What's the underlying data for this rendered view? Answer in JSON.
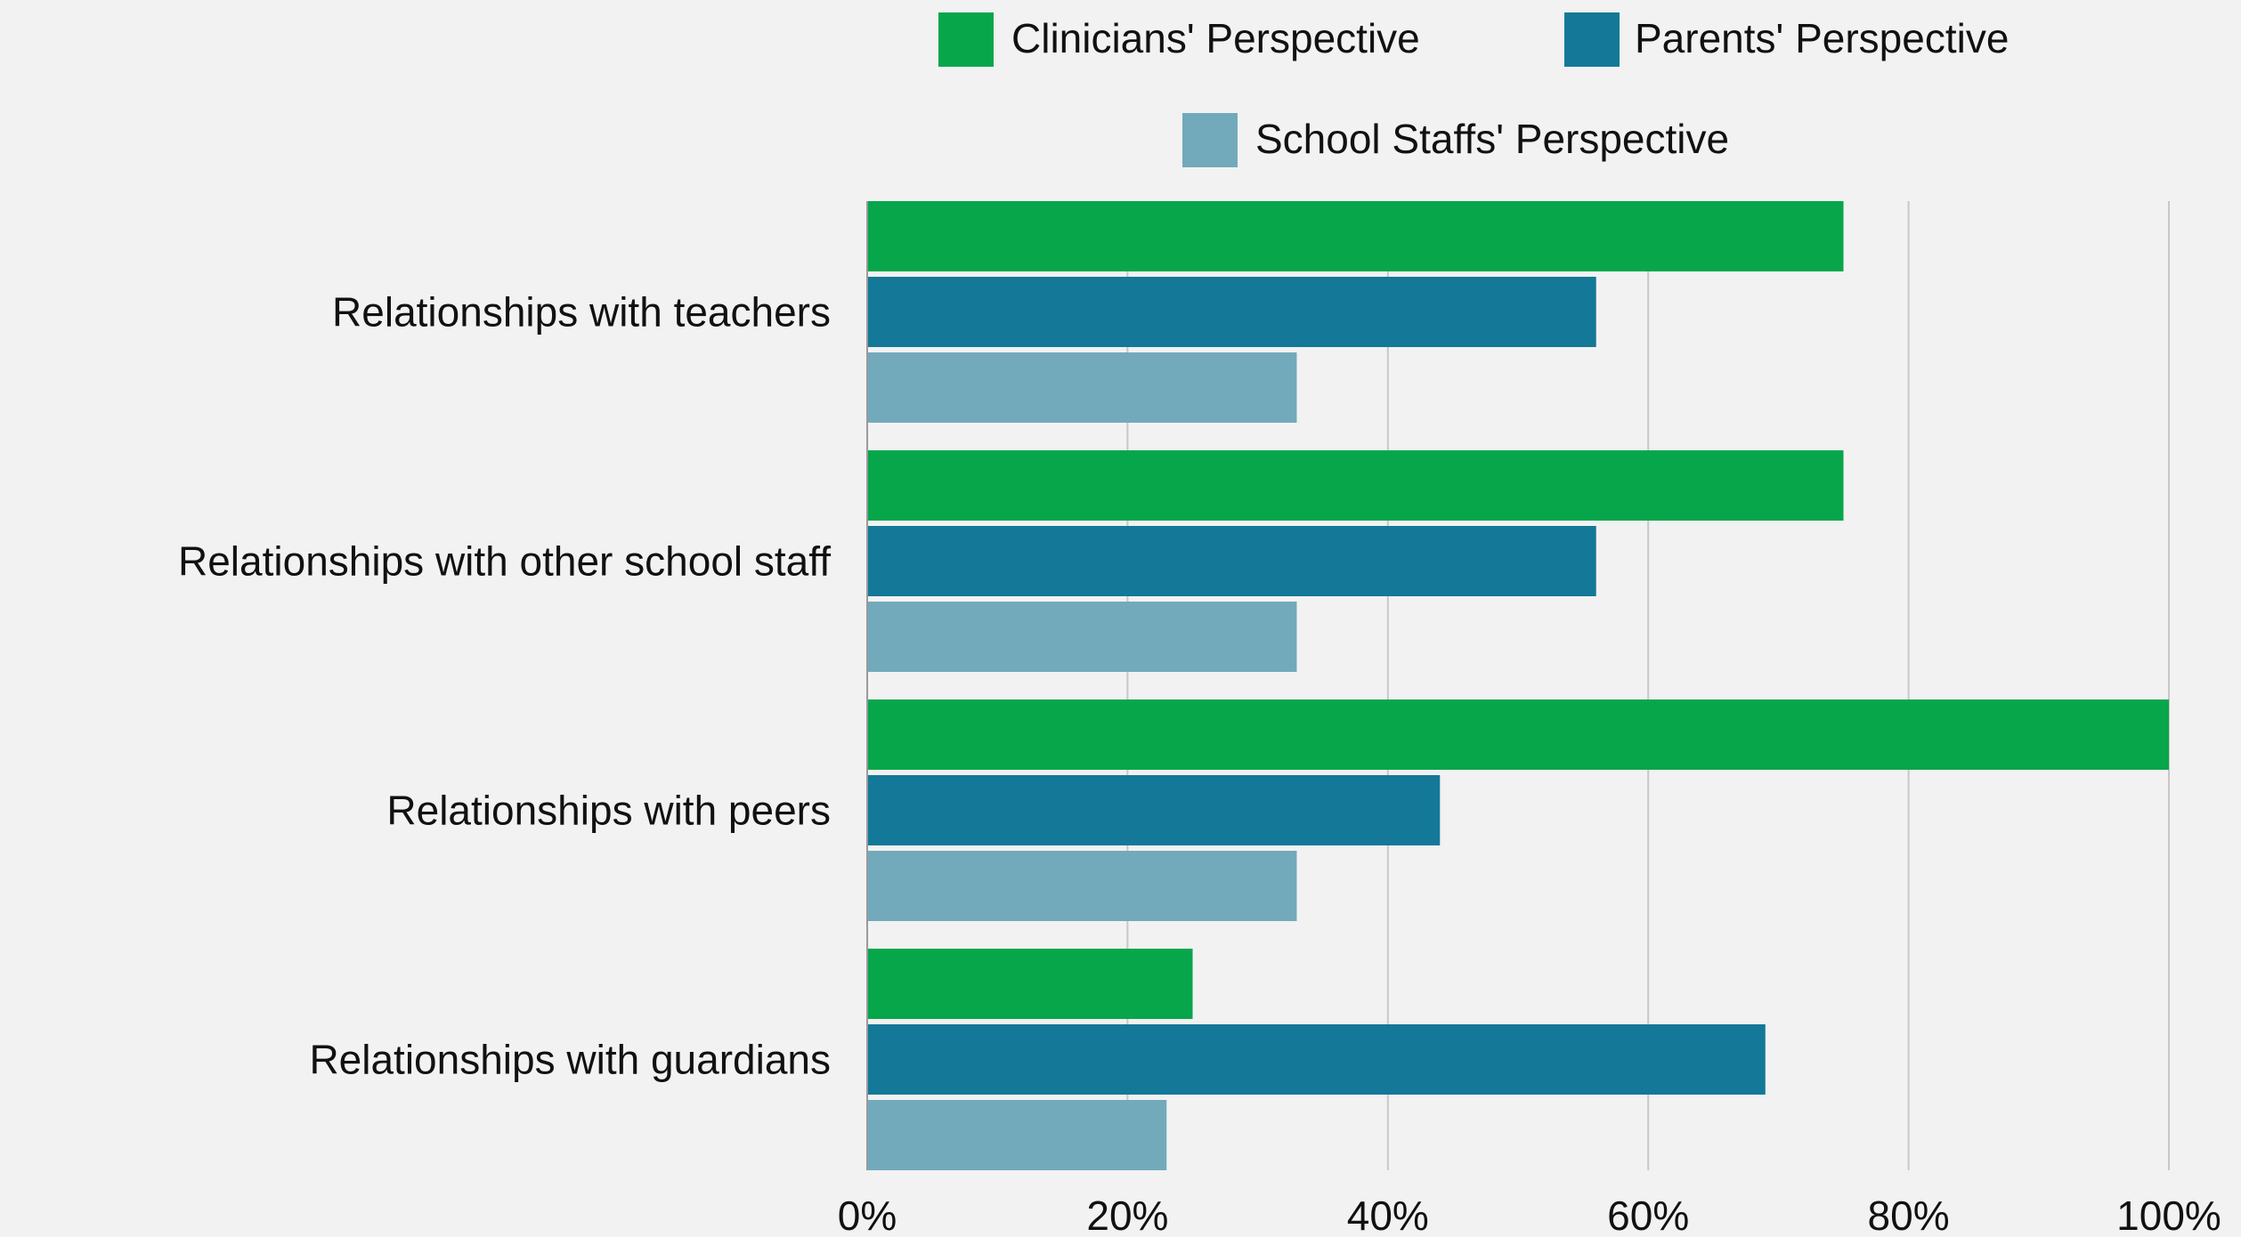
{
  "chart_data": {
    "type": "bar",
    "orientation": "horizontal",
    "categories": [
      "Relationships with teachers",
      "Relationships with other school staff",
      "Relationships with peers",
      "Relationships with guardians"
    ],
    "series": [
      {
        "name": "Clinicians' Perspective",
        "color": "#07a64b",
        "values": [
          75,
          75,
          100,
          25
        ]
      },
      {
        "name": "Parents' Perspective",
        "color": "#147898",
        "values": [
          56,
          56,
          44,
          69
        ]
      },
      {
        "name": "School Staffs' Perspective",
        "color": "#72aabb",
        "values": [
          33,
          33,
          33,
          23
        ]
      }
    ],
    "x_ticks": [
      "0%",
      "20%",
      "40%",
      "60%",
      "80%",
      "100%"
    ],
    "xlim": [
      0,
      100
    ],
    "unit": "%",
    "title": "",
    "xlabel": "",
    "ylabel": "",
    "grid": "vertical",
    "legend_position": "top"
  }
}
